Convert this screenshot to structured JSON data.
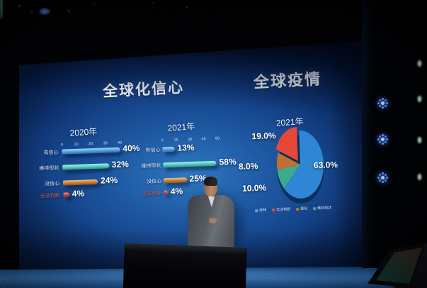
{
  "slide": {
    "left_title": "全球化信心",
    "right_title": "全球疫情"
  },
  "chart_data": [
    {
      "type": "bar",
      "title": "2020年",
      "orientation": "horizontal",
      "categories": [
        "有信心",
        "维持现状",
        "没信心",
        "无法判断"
      ],
      "values": [
        40,
        32,
        24,
        4
      ],
      "value_labels": [
        "40%",
        "32%",
        "24%",
        "4%"
      ],
      "bar_colors": [
        "#4fa8e8",
        "#56d4c2",
        "#d6802c",
        "#dd2f1f"
      ],
      "category_label_colors": [
        "#e8f1fa",
        "#e8f1fa",
        "#e8f1fa",
        "#e2604a"
      ],
      "x_ticks": [
        0,
        10,
        20,
        30,
        40
      ],
      "xlim": [
        0,
        42
      ],
      "grid": false
    },
    {
      "type": "bar",
      "title": "2021年",
      "orientation": "horizontal",
      "categories": [
        "有信心",
        "维持现状",
        "没信心",
        "无法判断"
      ],
      "values": [
        13,
        58,
        25,
        4
      ],
      "value_labels": [
        "13%",
        "58%",
        "25%",
        "4%"
      ],
      "bar_colors": [
        "#4fa8e8",
        "#56d4c2",
        "#d6802c",
        "#dd2f1f"
      ],
      "category_label_colors": [
        "#e8f1fa",
        "#e8f1fa",
        "#e8f1fa",
        "#e2604a"
      ],
      "x_ticks": [
        0,
        15,
        30,
        45,
        60
      ],
      "xlim": [
        0,
        62
      ],
      "grid": false
    },
    {
      "type": "pie",
      "title": "2021年",
      "slices": [
        {
          "label": "好转",
          "value": 63,
          "pct": "63.0%",
          "color": "#2f86d4"
        },
        {
          "label": "维持现状",
          "value": 10,
          "pct": "10.0%",
          "color": "#3fa98e"
        },
        {
          "label": "恶化",
          "value": 8,
          "pct": "8.0%",
          "color": "#bf7030"
        },
        {
          "label": "无法判断",
          "value": 19,
          "pct": "19.0%",
          "color": "#e64838"
        }
      ],
      "legend": [
        {
          "label": "好转",
          "color": "#6f9fd0"
        },
        {
          "label": "无法判断",
          "color": "#e64838"
        },
        {
          "label": "恶化",
          "color": "#bf7030"
        },
        {
          "label": "维持现状",
          "color": "#3fa98e"
        }
      ],
      "legend_position": "bottom"
    }
  ]
}
